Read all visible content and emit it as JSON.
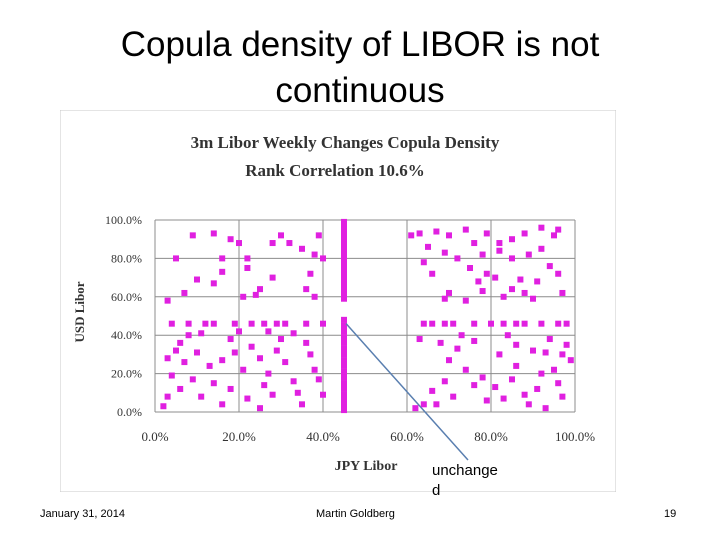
{
  "slide": {
    "title_line1": "Copula density of LIBOR is not",
    "title_line2": "continuous",
    "annotation_line1": "unchange",
    "annotation_line2": "d",
    "footer_date": "January 31, 2014",
    "footer_author": "Martin Goldberg",
    "footer_page": "19"
  },
  "chart_data": {
    "type": "scatter",
    "title": "3m Libor Weekly Changes Copula Density",
    "subtitle": "Rank Correlation 10.6%",
    "xlabel": "JPY Libor",
    "ylabel": "USD Libor",
    "xlim": [
      0,
      1
    ],
    "ylim": [
      0,
      1
    ],
    "x_ticks": [
      "0.0%",
      "20.0%",
      "40.0%",
      "60.0%",
      "80.0%",
      "100.0%"
    ],
    "y_ticks": [
      "0.0%",
      "20.0%",
      "40.0%",
      "60.0%",
      "80.0%",
      "100.0%"
    ],
    "grid": true,
    "marker_color": "#e020e0",
    "arrow_color": "#5a7fb0",
    "annotation_target": [
      0.455,
      0.46
    ],
    "points": [
      [
        0.09,
        0.92
      ],
      [
        0.14,
        0.93
      ],
      [
        0.05,
        0.8
      ],
      [
        0.1,
        0.69
      ],
      [
        0.14,
        0.67
      ],
      [
        0.07,
        0.62
      ],
      [
        0.03,
        0.58
      ],
      [
        0.16,
        0.73
      ],
      [
        0.16,
        0.8
      ],
      [
        0.18,
        0.9
      ],
      [
        0.2,
        0.88
      ],
      [
        0.22,
        0.8
      ],
      [
        0.22,
        0.75
      ],
      [
        0.25,
        0.64
      ],
      [
        0.24,
        0.61
      ],
      [
        0.28,
        0.7
      ],
      [
        0.28,
        0.88
      ],
      [
        0.3,
        0.92
      ],
      [
        0.32,
        0.88
      ],
      [
        0.35,
        0.85
      ],
      [
        0.38,
        0.82
      ],
      [
        0.39,
        0.92
      ],
      [
        0.4,
        0.8
      ],
      [
        0.37,
        0.72
      ],
      [
        0.36,
        0.64
      ],
      [
        0.38,
        0.6
      ],
      [
        0.21,
        0.6
      ],
      [
        0.61,
        0.92
      ],
      [
        0.63,
        0.93
      ],
      [
        0.67,
        0.94
      ],
      [
        0.7,
        0.92
      ],
      [
        0.74,
        0.95
      ],
      [
        0.79,
        0.93
      ],
      [
        0.82,
        0.88
      ],
      [
        0.85,
        0.9
      ],
      [
        0.88,
        0.93
      ],
      [
        0.92,
        0.96
      ],
      [
        0.95,
        0.92
      ],
      [
        0.96,
        0.95
      ],
      [
        0.65,
        0.86
      ],
      [
        0.69,
        0.83
      ],
      [
        0.72,
        0.8
      ],
      [
        0.75,
        0.75
      ],
      [
        0.78,
        0.82
      ],
      [
        0.82,
        0.84
      ],
      [
        0.85,
        0.8
      ],
      [
        0.89,
        0.82
      ],
      [
        0.92,
        0.85
      ],
      [
        0.64,
        0.78
      ],
      [
        0.66,
        0.72
      ],
      [
        0.7,
        0.62
      ],
      [
        0.77,
        0.68
      ],
      [
        0.81,
        0.7
      ],
      [
        0.85,
        0.64
      ],
      [
        0.88,
        0.62
      ],
      [
        0.91,
        0.68
      ],
      [
        0.94,
        0.76
      ],
      [
        0.97,
        0.62
      ],
      [
        0.96,
        0.72
      ],
      [
        0.69,
        0.59
      ],
      [
        0.74,
        0.58
      ],
      [
        0.78,
        0.63
      ],
      [
        0.83,
        0.6
      ],
      [
        0.87,
        0.69
      ],
      [
        0.9,
        0.59
      ],
      [
        0.76,
        0.88
      ],
      [
        0.79,
        0.72
      ],
      [
        0.04,
        0.46
      ],
      [
        0.08,
        0.46
      ],
      [
        0.12,
        0.46
      ],
      [
        0.14,
        0.46
      ],
      [
        0.19,
        0.46
      ],
      [
        0.23,
        0.46
      ],
      [
        0.26,
        0.46
      ],
      [
        0.29,
        0.46
      ],
      [
        0.31,
        0.46
      ],
      [
        0.36,
        0.46
      ],
      [
        0.4,
        0.46
      ],
      [
        0.64,
        0.46
      ],
      [
        0.66,
        0.46
      ],
      [
        0.69,
        0.46
      ],
      [
        0.71,
        0.46
      ],
      [
        0.76,
        0.46
      ],
      [
        0.8,
        0.46
      ],
      [
        0.83,
        0.46
      ],
      [
        0.86,
        0.46
      ],
      [
        0.88,
        0.46
      ],
      [
        0.92,
        0.46
      ],
      [
        0.96,
        0.46
      ],
      [
        0.98,
        0.46
      ],
      [
        0.06,
        0.36
      ],
      [
        0.08,
        0.4
      ],
      [
        0.03,
        0.28
      ],
      [
        0.07,
        0.26
      ],
      [
        0.04,
        0.19
      ],
      [
        0.09,
        0.17
      ],
      [
        0.06,
        0.12
      ],
      [
        0.03,
        0.08
      ],
      [
        0.02,
        0.03
      ],
      [
        0.1,
        0.31
      ],
      [
        0.13,
        0.24
      ],
      [
        0.14,
        0.15
      ],
      [
        0.11,
        0.08
      ],
      [
        0.16,
        0.04
      ],
      [
        0.18,
        0.38
      ],
      [
        0.19,
        0.31
      ],
      [
        0.21,
        0.22
      ],
      [
        0.18,
        0.12
      ],
      [
        0.22,
        0.07
      ],
      [
        0.25,
        0.02
      ],
      [
        0.23,
        0.34
      ],
      [
        0.25,
        0.28
      ],
      [
        0.27,
        0.2
      ],
      [
        0.26,
        0.14
      ],
      [
        0.28,
        0.09
      ],
      [
        0.3,
        0.38
      ],
      [
        0.31,
        0.26
      ],
      [
        0.33,
        0.16
      ],
      [
        0.34,
        0.1
      ],
      [
        0.36,
        0.36
      ],
      [
        0.37,
        0.3
      ],
      [
        0.38,
        0.22
      ],
      [
        0.39,
        0.17
      ],
      [
        0.4,
        0.09
      ],
      [
        0.35,
        0.04
      ],
      [
        0.2,
        0.42
      ],
      [
        0.11,
        0.41
      ],
      [
        0.27,
        0.42
      ],
      [
        0.33,
        0.41
      ],
      [
        0.16,
        0.27
      ],
      [
        0.05,
        0.32
      ],
      [
        0.29,
        0.32
      ],
      [
        0.64,
        0.04
      ],
      [
        0.62,
        0.02
      ],
      [
        0.66,
        0.11
      ],
      [
        0.69,
        0.16
      ],
      [
        0.7,
        0.27
      ],
      [
        0.72,
        0.33
      ],
      [
        0.74,
        0.22
      ],
      [
        0.76,
        0.37
      ],
      [
        0.76,
        0.14
      ],
      [
        0.79,
        0.06
      ],
      [
        0.81,
        0.13
      ],
      [
        0.82,
        0.3
      ],
      [
        0.84,
        0.4
      ],
      [
        0.86,
        0.35
      ],
      [
        0.86,
        0.24
      ],
      [
        0.88,
        0.09
      ],
      [
        0.89,
        0.04
      ],
      [
        0.91,
        0.12
      ],
      [
        0.93,
        0.02
      ],
      [
        0.94,
        0.38
      ],
      [
        0.95,
        0.22
      ],
      [
        0.96,
        0.15
      ],
      [
        0.97,
        0.3
      ],
      [
        0.98,
        0.35
      ],
      [
        0.99,
        0.27
      ],
      [
        0.93,
        0.31
      ],
      [
        0.68,
        0.36
      ],
      [
        0.73,
        0.4
      ],
      [
        0.78,
        0.18
      ],
      [
        0.83,
        0.07
      ],
      [
        0.63,
        0.38
      ],
      [
        0.9,
        0.32
      ],
      [
        0.97,
        0.08
      ],
      [
        0.71,
        0.08
      ],
      [
        0.67,
        0.04
      ],
      [
        0.85,
        0.17
      ],
      [
        0.92,
        0.2
      ],
      [
        0.45,
        0.99
      ],
      [
        0.45,
        0.97
      ],
      [
        0.45,
        0.95
      ],
      [
        0.45,
        0.93
      ],
      [
        0.45,
        0.91
      ],
      [
        0.45,
        0.89
      ],
      [
        0.45,
        0.87
      ],
      [
        0.45,
        0.85
      ],
      [
        0.45,
        0.83
      ],
      [
        0.45,
        0.81
      ],
      [
        0.45,
        0.79
      ],
      [
        0.45,
        0.77
      ],
      [
        0.45,
        0.75
      ],
      [
        0.45,
        0.73
      ],
      [
        0.45,
        0.71
      ],
      [
        0.45,
        0.69
      ],
      [
        0.45,
        0.67
      ],
      [
        0.45,
        0.65
      ],
      [
        0.45,
        0.63
      ],
      [
        0.45,
        0.61
      ],
      [
        0.45,
        0.59
      ],
      [
        0.45,
        0.48
      ],
      [
        0.45,
        0.45
      ],
      [
        0.45,
        0.42
      ],
      [
        0.45,
        0.39
      ],
      [
        0.45,
        0.36
      ],
      [
        0.45,
        0.33
      ],
      [
        0.45,
        0.3
      ],
      [
        0.45,
        0.27
      ],
      [
        0.45,
        0.24
      ],
      [
        0.45,
        0.21
      ],
      [
        0.45,
        0.18
      ],
      [
        0.45,
        0.15
      ],
      [
        0.45,
        0.12
      ],
      [
        0.45,
        0.09
      ],
      [
        0.45,
        0.06
      ],
      [
        0.45,
        0.03
      ],
      [
        0.45,
        0.01
      ]
    ]
  }
}
